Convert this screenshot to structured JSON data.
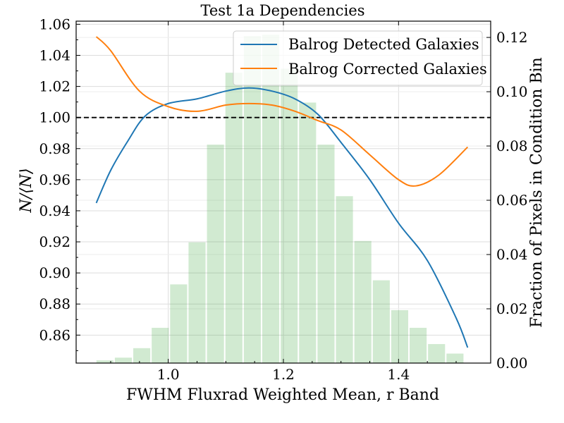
{
  "chart_data": {
    "type": "line",
    "title": "Test 1a Dependencies",
    "xlabel": "FWHM Fluxrad Weighted Mean, r Band",
    "ylabel": "N/⟨N⟩",
    "y2label": "Fraction of Pixels in Condition Bin",
    "xlim": [
      0.84,
      1.56
    ],
    "ylim": [
      0.842,
      1.062
    ],
    "y2lim": [
      0.0,
      0.126
    ],
    "xticks": [
      1.0,
      1.2,
      1.4
    ],
    "xtick_labels": [
      "1.0",
      "1.2",
      "1.4"
    ],
    "yticks": [
      0.86,
      0.88,
      0.9,
      0.92,
      0.94,
      0.96,
      0.98,
      1.0,
      1.02,
      1.04,
      1.06
    ],
    "ytick_labels": [
      "0.86",
      "0.88",
      "0.90",
      "0.92",
      "0.94",
      "0.96",
      "0.98",
      "1.00",
      "1.02",
      "1.04",
      "1.06"
    ],
    "y2ticks": [
      0.0,
      0.02,
      0.04,
      0.06,
      0.08,
      0.1,
      0.12
    ],
    "y2tick_labels": [
      "0.00",
      "0.02",
      "0.04",
      "0.06",
      "0.08",
      "0.10",
      "0.12"
    ],
    "reference_line": {
      "y": 1.0,
      "style": "dashed",
      "color": "#000000"
    },
    "legend": {
      "placement": "top-right"
    },
    "grid": true,
    "series": [
      {
        "name": "Balrog Detected Galaxies",
        "color": "#1f77b4",
        "x": [
          0.875,
          0.9,
          0.93,
          0.96,
          1.0,
          1.05,
          1.1,
          1.14,
          1.18,
          1.22,
          1.26,
          1.3,
          1.35,
          1.4,
          1.45,
          1.5,
          1.52
        ],
        "y": [
          0.945,
          0.966,
          0.985,
          1.001,
          1.009,
          1.012,
          1.017,
          1.019,
          1.017,
          1.012,
          1.002,
          0.984,
          0.96,
          0.932,
          0.908,
          0.871,
          0.852
        ]
      },
      {
        "name": "Balrog Corrected Galaxies",
        "color": "#ff7f0e",
        "x": [
          0.875,
          0.9,
          0.95,
          1.0,
          1.05,
          1.1,
          1.14,
          1.18,
          1.22,
          1.26,
          1.3,
          1.35,
          1.4,
          1.43,
          1.47,
          1.52
        ],
        "y": [
          1.052,
          1.043,
          1.017,
          1.007,
          1.004,
          1.008,
          1.009,
          1.008,
          1.004,
          0.998,
          0.992,
          0.976,
          0.96,
          0.956,
          0.963,
          0.981
        ]
      }
    ],
    "histogram": {
      "color": "#2ca02c",
      "opacity": 0.22,
      "bin_width": 0.032,
      "bin_centers": [
        0.89,
        0.922,
        0.954,
        0.986,
        1.018,
        1.05,
        1.082,
        1.114,
        1.146,
        1.178,
        1.21,
        1.242,
        1.274,
        1.306,
        1.338,
        1.37,
        1.402,
        1.434,
        1.466,
        1.498
      ],
      "fractions": [
        0.001,
        0.002,
        0.0055,
        0.013,
        0.029,
        0.0445,
        0.0805,
        0.107,
        0.1205,
        0.121,
        0.1085,
        0.096,
        0.0805,
        0.0615,
        0.045,
        0.0305,
        0.0195,
        0.013,
        0.007,
        0.0035
      ]
    }
  }
}
